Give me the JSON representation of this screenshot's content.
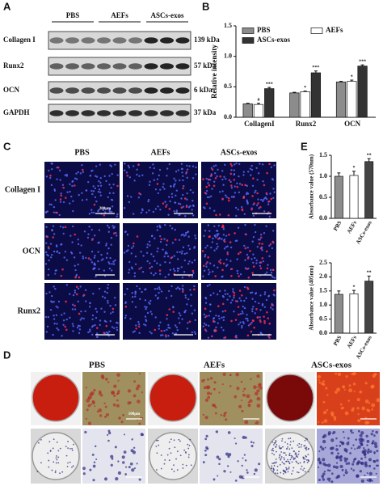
{
  "panel_labels": [
    "A",
    "B",
    "C",
    "D",
    "E"
  ],
  "blot": {
    "groups": [
      "PBS",
      "AEFs",
      "ASCs-exos"
    ],
    "rows": [
      {
        "protein": "Collagen I",
        "size": "139 kDa"
      },
      {
        "protein": "Runx2",
        "size": "57 kDa"
      },
      {
        "protein": "OCN",
        "size": "6 kDa"
      },
      {
        "protein": "GAPDH",
        "size": "37 kDa"
      }
    ]
  },
  "chart_data": [
    {
      "type": "bar",
      "ylabel": "Relative intensity",
      "categories": [
        "CollagenI",
        "Runx2",
        "OCN"
      ],
      "series": [
        {
          "name": "PBS",
          "color": "#8c8c8c",
          "values": [
            0.22,
            0.4,
            0.58
          ],
          "errors": [
            0.01,
            0.01,
            0.01
          ],
          "significance": [
            null,
            null,
            null
          ]
        },
        {
          "name": "AEFs",
          "color": "#ffffff",
          "values": [
            0.21,
            0.42,
            0.59
          ],
          "errors": [
            0.02,
            0.01,
            0.02
          ],
          "significance": [
            "#",
            "*",
            "*"
          ]
        },
        {
          "name": "ASCs-exos",
          "color": "#333333",
          "values": [
            0.47,
            0.73,
            0.84
          ],
          "errors": [
            0.02,
            0.03,
            0.02
          ],
          "significance": [
            "***",
            "***",
            "***"
          ]
        }
      ],
      "ylim": [
        0,
        1.5
      ],
      "yticks": [
        {
          "value": 0,
          "label": "0.0"
        },
        0.5,
        {
          "value": 1,
          "label": "1.0"
        },
        1.5
      ],
      "legend": "top"
    },
    {
      "type": "bar",
      "ylabel": "Absorbance value (570nm)",
      "categories": [
        "PBS",
        "AEFs",
        "ASCs-exos"
      ],
      "values": [
        1.0,
        1.02,
        1.35
      ],
      "errors": [
        0.08,
        0.1,
        0.07
      ],
      "colors": [
        "#8c8c8c",
        "#ffffff",
        "#444444"
      ],
      "significance": [
        null,
        "*",
        "**"
      ],
      "ylim": [
        0,
        1.5
      ],
      "yticks": [
        {
          "value": 0,
          "label": "0.0"
        },
        0.5,
        {
          "value": 1,
          "label": "1.0"
        },
        1.5
      ]
    },
    {
      "type": "bar",
      "ylabel": "Absorbance value (405nm)",
      "categories": [
        "PBS",
        "AEFs",
        "ASCs-exos"
      ],
      "values": [
        1.38,
        1.4,
        1.85
      ],
      "errors": [
        0.12,
        0.12,
        0.18
      ],
      "colors": [
        "#8c8c8c",
        "#ffffff",
        "#444444"
      ],
      "significance": [
        null,
        "*",
        "**"
      ],
      "ylim": [
        0,
        2.5
      ],
      "yticks": [
        {
          "value": 0,
          "label": "0.0"
        },
        0.5,
        {
          "value": 1,
          "label": "1.0"
        },
        1.5,
        {
          "value": 2,
          "label": "2.0"
        },
        2.5
      ]
    }
  ],
  "fluorescence": {
    "columns": [
      "PBS",
      "AEFs",
      "ASCs-exos"
    ],
    "rows": [
      "Collagen I",
      "OCN",
      "Runx2"
    ],
    "scale_bar": "200μm"
  },
  "staining": {
    "columns": [
      "PBS",
      "AEFs",
      "ASCs-exos"
    ],
    "scale_bar": "100μm"
  }
}
